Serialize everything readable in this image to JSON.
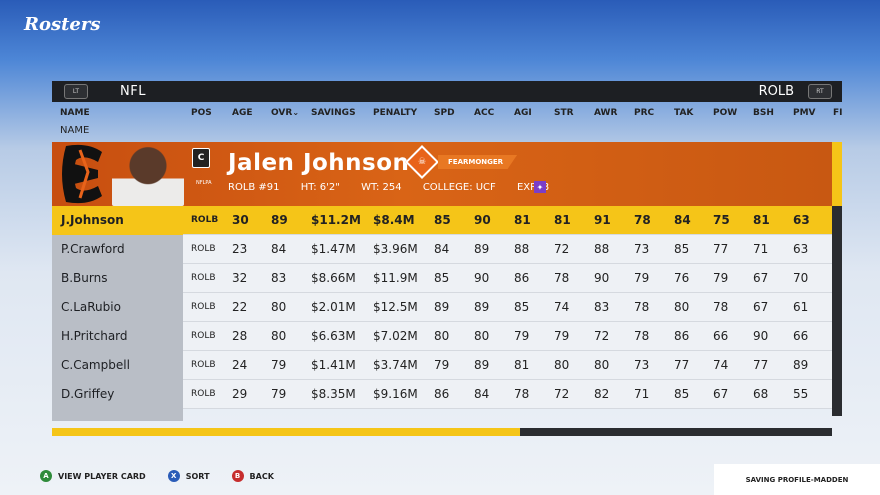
{
  "screen_title": "Rosters",
  "topbar": {
    "left_button": "LT",
    "league": "NFL",
    "position": "ROLB",
    "right_button": "RT"
  },
  "columns": [
    "NAME",
    "POS",
    "AGE",
    "OVR",
    "SAVINGS",
    "PENALTY",
    "SPD",
    "ACC",
    "AGI",
    "STR",
    "AWR",
    "PRC",
    "TAK",
    "POW",
    "BSH",
    "PMV",
    "FI"
  ],
  "sort_indicator": "⌄",
  "sub_header": "NAME",
  "player_card": {
    "name": "Jalen Johnson",
    "captain_badge": "C",
    "team_label": "NFLPA",
    "position_number": "ROLB #91",
    "height": "HT: 6'2\"",
    "weight": "WT: 254",
    "college": "COLLEGE: UCF",
    "experience": "EXP: 8",
    "ability": "FEARMONGER",
    "colors": {
      "card": "#d96416",
      "selected": "#f5c518"
    }
  },
  "rows": [
    {
      "name": "J.Johnson",
      "pos": "ROLB",
      "age": "30",
      "ovr": "89",
      "savings": "$11.2M",
      "penalty": "$8.4M",
      "spd": "85",
      "acc": "90",
      "agi": "81",
      "str": "81",
      "awr": "91",
      "prc": "78",
      "tak": "84",
      "pow": "75",
      "bsh": "81",
      "pmv": "63"
    },
    {
      "name": "P.Crawford",
      "pos": "ROLB",
      "age": "23",
      "ovr": "84",
      "savings": "$1.47M",
      "penalty": "$3.96M",
      "spd": "84",
      "acc": "89",
      "agi": "88",
      "str": "72",
      "awr": "88",
      "prc": "73",
      "tak": "85",
      "pow": "77",
      "bsh": "71",
      "pmv": "63"
    },
    {
      "name": "B.Burns",
      "pos": "ROLB",
      "age": "32",
      "ovr": "83",
      "savings": "$8.66M",
      "penalty": "$11.9M",
      "spd": "85",
      "acc": "90",
      "agi": "86",
      "str": "78",
      "awr": "90",
      "prc": "79",
      "tak": "76",
      "pow": "79",
      "bsh": "67",
      "pmv": "70"
    },
    {
      "name": "C.LaRubio",
      "pos": "ROLB",
      "age": "22",
      "ovr": "80",
      "savings": "$2.01M",
      "penalty": "$12.5M",
      "spd": "89",
      "acc": "89",
      "agi": "85",
      "str": "74",
      "awr": "83",
      "prc": "78",
      "tak": "80",
      "pow": "78",
      "bsh": "67",
      "pmv": "61"
    },
    {
      "name": "H.Pritchard",
      "pos": "ROLB",
      "age": "28",
      "ovr": "80",
      "savings": "$6.63M",
      "penalty": "$7.02M",
      "spd": "80",
      "acc": "80",
      "agi": "79",
      "str": "79",
      "awr": "72",
      "prc": "78",
      "tak": "86",
      "pow": "66",
      "bsh": "90",
      "pmv": "66"
    },
    {
      "name": "C.Campbell",
      "pos": "ROLB",
      "age": "24",
      "ovr": "79",
      "savings": "$1.41M",
      "penalty": "$3.74M",
      "spd": "79",
      "acc": "89",
      "agi": "81",
      "str": "80",
      "awr": "80",
      "prc": "73",
      "tak": "77",
      "pow": "74",
      "bsh": "77",
      "pmv": "89"
    },
    {
      "name": "D.Griffey",
      "pos": "ROLB",
      "age": "29",
      "ovr": "79",
      "savings": "$8.35M",
      "penalty": "$9.16M",
      "spd": "86",
      "acc": "84",
      "agi": "78",
      "str": "72",
      "awr": "82",
      "prc": "71",
      "tak": "85",
      "pow": "67",
      "bsh": "68",
      "pmv": "55"
    }
  ],
  "progress_fraction": 0.6,
  "footer": {
    "actions": [
      {
        "button": "A",
        "label": "VIEW PLAYER CARD"
      },
      {
        "button": "X",
        "label": "SORT"
      },
      {
        "button": "B",
        "label": "BACK"
      }
    ],
    "status": "SAVING PROFILE-MADDEN"
  }
}
